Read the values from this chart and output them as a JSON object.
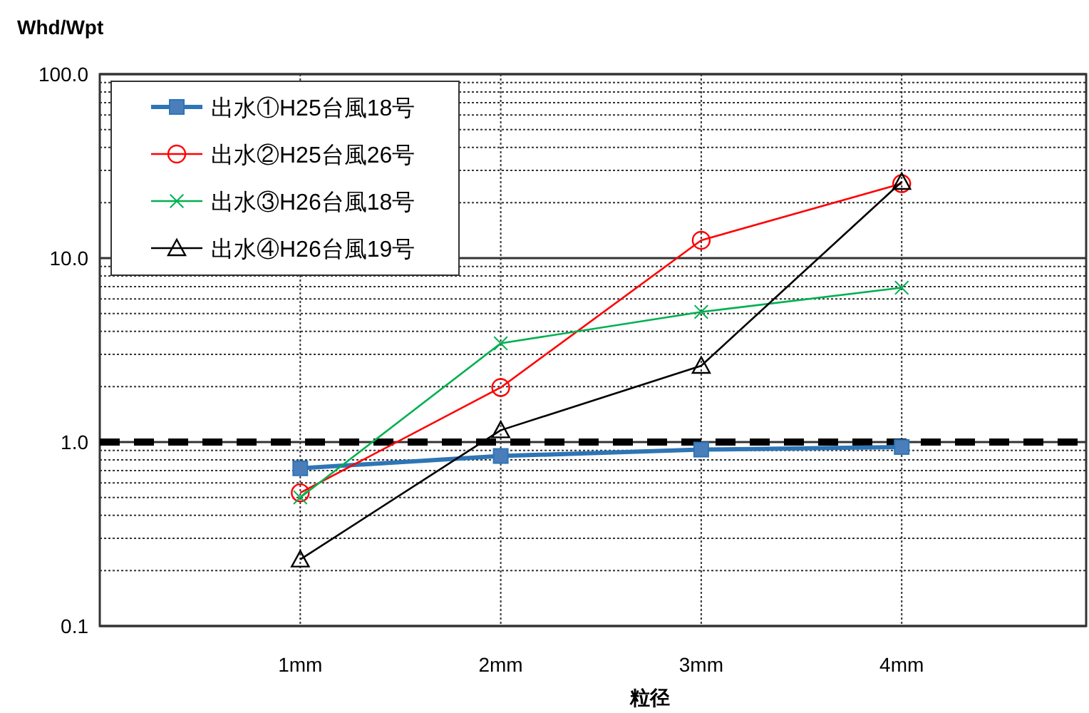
{
  "chart_data": {
    "type": "line",
    "xlabel": "粒径",
    "ylabel": "Whd/Wpt",
    "categories": [
      "1mm",
      "2mm",
      "3mm",
      "4mm"
    ],
    "log": "y",
    "ylim": [
      0.1,
      100
    ],
    "yticks": [
      {
        "value": 0.1,
        "label": "0.1"
      },
      {
        "value": 1,
        "label": "1.0"
      },
      {
        "value": 10,
        "label": "10.0"
      },
      {
        "value": 100,
        "label": "100.0"
      }
    ],
    "grid": true,
    "legend": "top left",
    "ref_lines": [
      {
        "axis": "y",
        "value": 1,
        "color": "#000000",
        "line_style": "dashed"
      }
    ],
    "series": [
      {
        "name": "出水①H25台風18号",
        "color": "#2e75b6",
        "marker": "square",
        "values": [
          0.72,
          0.84,
          0.91,
          0.94
        ]
      },
      {
        "name": "出水②H25台風26号",
        "color": "#ff0000",
        "marker": "circle",
        "values": [
          0.53,
          1.98,
          12.5,
          25.4
        ]
      },
      {
        "name": "出水③H26台風18号",
        "color": "#00b050",
        "marker": "cross",
        "values": [
          0.5,
          3.44,
          5.1,
          6.9
        ]
      },
      {
        "name": "出水④H26台風19号",
        "color": "#000000",
        "marker": "triangle",
        "values": [
          0.23,
          1.16,
          2.6,
          26
        ]
      }
    ]
  }
}
